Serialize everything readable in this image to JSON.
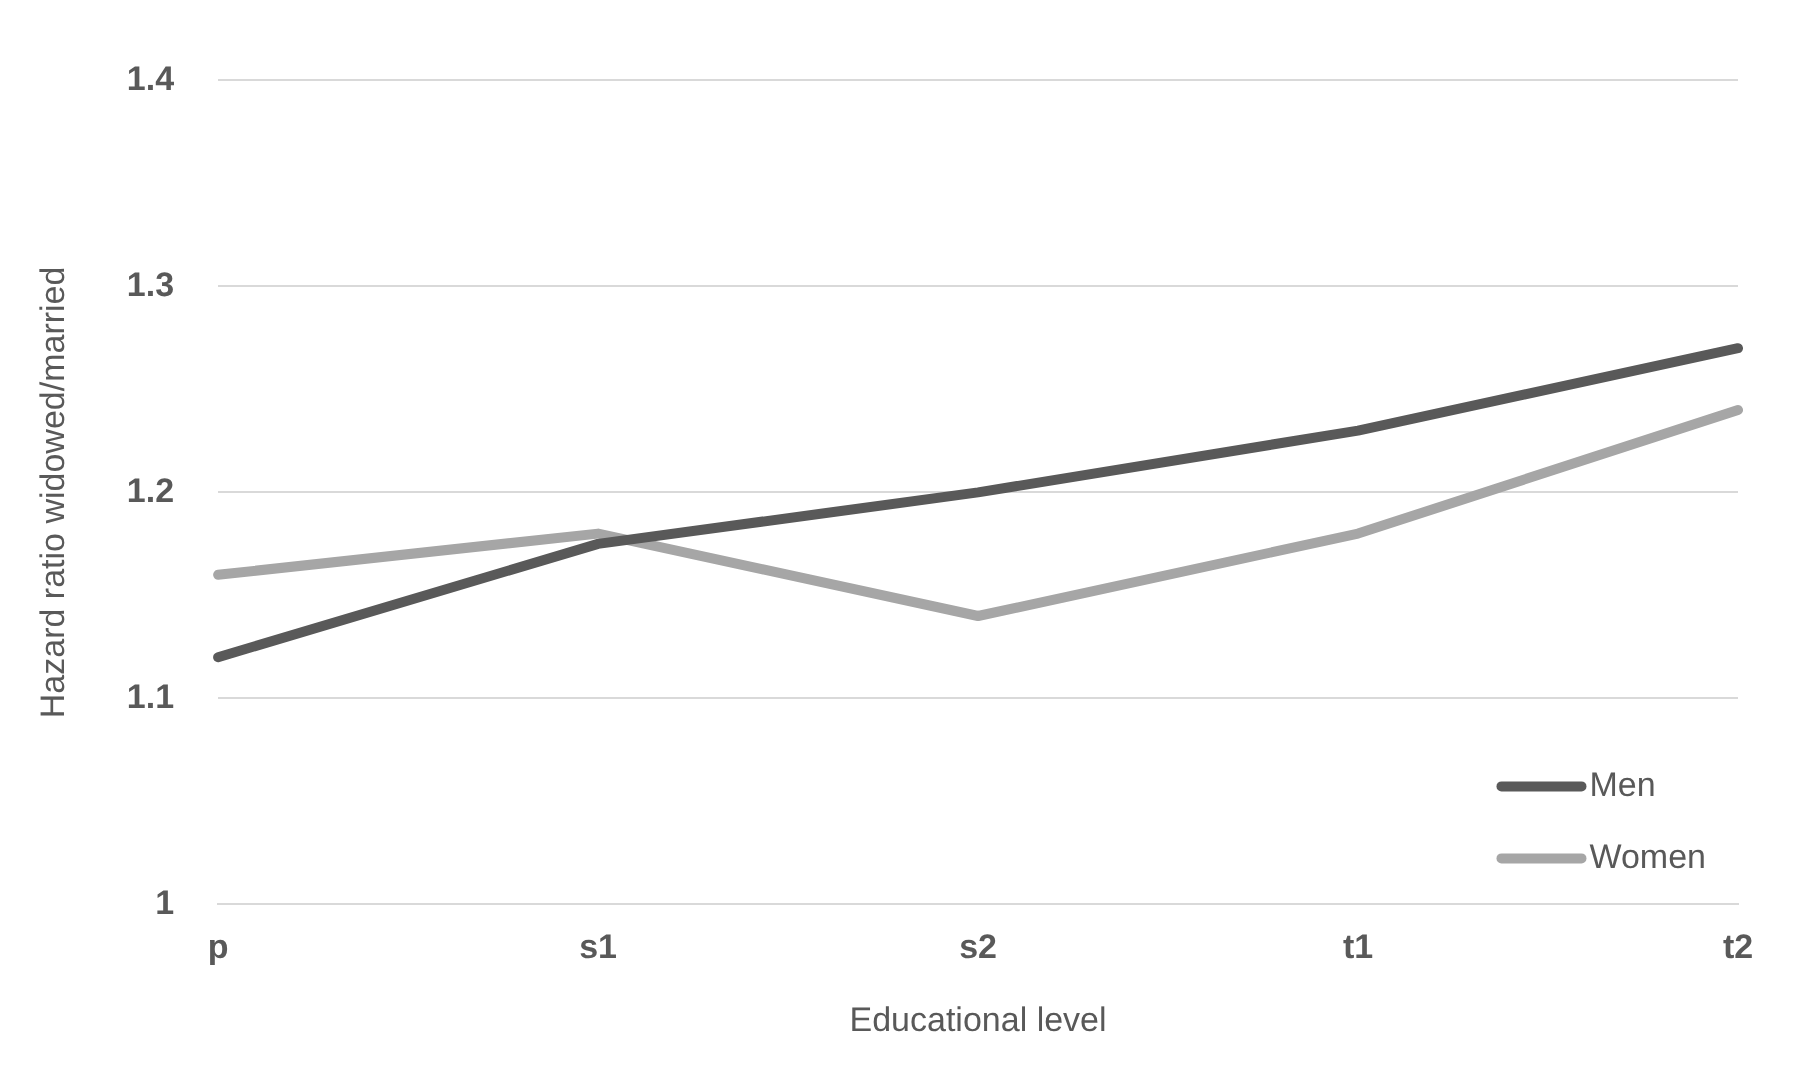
{
  "chart_data": {
    "type": "line",
    "xlabel": "Educational level",
    "ylabel": "Hazard ratio widowed/married",
    "categories": [
      "p",
      "s1",
      "s2",
      "t1",
      "t2"
    ],
    "series": [
      {
        "name": "Men",
        "color": "#595959",
        "values": [
          1.12,
          1.175,
          1.2,
          1.23,
          1.27
        ]
      },
      {
        "name": "Women",
        "color": "#a6a6a6",
        "values": [
          1.16,
          1.18,
          1.14,
          1.18,
          1.24
        ]
      }
    ],
    "ylim": [
      1,
      1.4
    ],
    "yticks": [
      1,
      1.1,
      1.2,
      1.3,
      1.4
    ],
    "grid": "y",
    "legend": "bottom right",
    "marker": "none",
    "line_style": "solid"
  }
}
